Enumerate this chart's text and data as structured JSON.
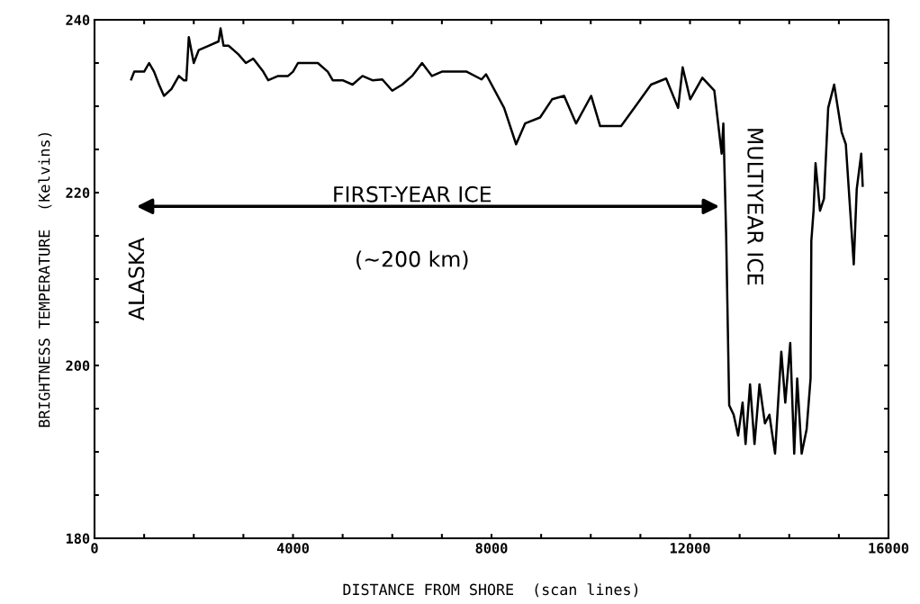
{
  "chart_data": {
    "type": "line",
    "xlabel": "DISTANCE FROM SHORE  (scan lines)",
    "ylabel": "BRIGHTNESS TEMPERATURE  (Kelvins)",
    "x": [
      740,
      800,
      1000,
      1100,
      1200,
      1300,
      1400,
      1550,
      1700,
      1800,
      1850,
      1900,
      2000,
      2100,
      2300,
      2500,
      2540,
      2600,
      2700,
      2900,
      3050,
      3200,
      3400,
      3500,
      3700,
      3900,
      4000,
      4100,
      4500,
      4700,
      4800,
      5000,
      5200,
      5400,
      5600,
      5800,
      6000,
      6200,
      6400,
      6600,
      6800,
      7000,
      7500,
      7800,
      7890,
      8254,
      8496,
      8677,
      8979,
      9221,
      9463,
      9705,
      10008,
      10189,
      10612,
      10915,
      11215,
      11519,
      11761,
      11852,
      12004,
      12249,
      12490,
      12638,
      12672,
      12729,
      12790,
      12880,
      12970,
      13060,
      13120,
      13210,
      13300,
      13400,
      13510,
      13600,
      13714,
      13780,
      13840,
      13920,
      14020,
      14100,
      14160,
      14250,
      14350,
      14430,
      14445,
      14490,
      14530,
      14620,
      14700,
      14785,
      14905,
      15056,
      15140,
      15300,
      15360,
      15450,
      15480
    ],
    "series": [
      {
        "color": "#000000",
        "values": [
          233.1,
          234,
          234,
          235,
          234,
          232.5,
          231.2,
          232,
          233.5,
          233,
          233,
          238,
          235,
          236.5,
          237,
          237.5,
          239,
          237,
          237,
          236,
          235,
          235.5,
          234,
          233,
          233.5,
          233.5,
          234,
          235,
          235,
          234,
          233,
          233,
          232.5,
          233.5,
          233,
          233.1,
          231.8,
          232.5,
          233.5,
          235,
          233.5,
          234,
          234,
          233.1,
          233.7,
          229.8,
          225.6,
          228,
          228.7,
          230.8,
          231.2,
          228,
          231.2,
          227.7,
          227.7,
          230.1,
          232.5,
          233.2,
          229.8,
          234.5,
          230.8,
          233.3,
          231.8,
          224.5,
          228,
          215,
          195.4,
          194.3,
          191.9,
          195.7,
          190.9,
          197.8,
          190.9,
          197.8,
          193.3,
          194.3,
          189.8,
          196.1,
          201.6,
          195.7,
          202.6,
          189.8,
          198.5,
          189.8,
          192.6,
          198.5,
          214.4,
          217.9,
          223.4,
          217.9,
          219.3,
          229.8,
          232.5,
          227,
          225.6,
          211.7,
          220.4,
          224.5,
          220.8
        ]
      }
    ],
    "xlim": [
      0,
      16000
    ],
    "ylim": [
      180,
      240
    ],
    "xticks": [
      0,
      {
        "value": 1000,
        "label": null
      },
      {
        "value": 2000,
        "label": null
      },
      {
        "value": 3000,
        "label": null
      },
      4000,
      {
        "value": 5000,
        "label": null
      },
      {
        "value": 6000,
        "label": null
      },
      {
        "value": 7000,
        "label": null
      },
      8000,
      {
        "value": 9000,
        "label": null
      },
      {
        "value": 10000,
        "label": null
      },
      {
        "value": 11000,
        "label": null
      },
      12000,
      {
        "value": 13000,
        "label": null
      },
      {
        "value": 14000,
        "label": null
      },
      {
        "value": 15000,
        "label": null
      },
      16000
    ],
    "yticks": [
      180,
      {
        "value": 185,
        "label": null
      },
      {
        "value": 190,
        "label": null
      },
      {
        "value": 195,
        "label": null
      },
      200,
      {
        "value": 205,
        "label": null
      },
      {
        "value": 210,
        "label": null
      },
      {
        "value": 215,
        "label": null
      },
      220,
      {
        "value": 225,
        "label": null
      },
      {
        "value": 230,
        "label": null
      },
      {
        "value": 235,
        "label": null
      },
      240
    ],
    "annotations": [
      "ALASKA",
      "FIRST-YEAR ICE",
      "(~200 km)",
      "MULTIYEAR ICE"
    ],
    "grid": false,
    "legend": false,
    "marker": "none",
    "line_style": "solid"
  }
}
